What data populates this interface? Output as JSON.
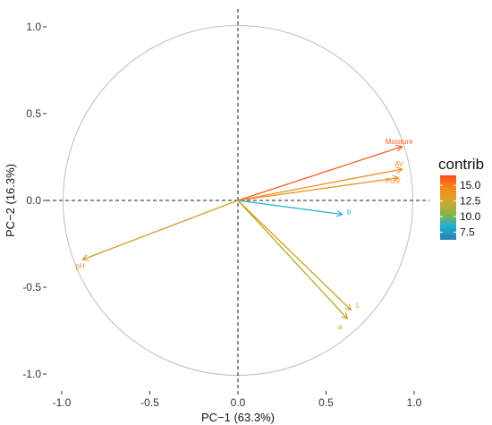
{
  "chart_data": {
    "type": "pca-correlation-circle",
    "xlabel": "PC−1 (63.3%)",
    "ylabel": "PC−2 (16.3%)",
    "xlim": [
      -1.05,
      1.05
    ],
    "ylim": [
      -1.05,
      1.05
    ],
    "x_ticks": [
      -1.0,
      -0.5,
      0.0,
      0.5,
      1.0
    ],
    "x_tick_labels": [
      "-1.0",
      "-0.5",
      "0.0",
      "0.5",
      "1.0"
    ],
    "y_ticks": [
      -1.0,
      -0.5,
      0.0,
      0.5,
      1.0
    ],
    "y_tick_labels": [
      "-1.0",
      "-0.5",
      "0.0",
      "0.5",
      "1.0"
    ],
    "circle_color": "#bdbdbd",
    "reference_lines": "dashed at x=0 and y=0",
    "variables": [
      {
        "name": "Moisture",
        "x": 0.93,
        "y": 0.31,
        "contrib": 15.8,
        "color": "#ff5a1f"
      },
      {
        "name": "AV",
        "x": 0.93,
        "y": 0.18,
        "contrib": 14.5,
        "color": "#f58a1f"
      },
      {
        "name": "POV",
        "x": 0.91,
        "y": 0.13,
        "contrib": 14.0,
        "color": "#ee9324"
      },
      {
        "name": "b",
        "x": 0.59,
        "y": -0.08,
        "contrib": 6.3,
        "color": "#19b2d0"
      },
      {
        "name": "pH",
        "x": -0.88,
        "y": -0.34,
        "contrib": 12.0,
        "color": "#d79a2a"
      },
      {
        "name": "L",
        "x": 0.64,
        "y": -0.63,
        "contrib": 11.2,
        "color": "#c8a424"
      },
      {
        "name": "a",
        "x": 0.62,
        "y": -0.68,
        "contrib": 10.9,
        "color": "#bba820"
      }
    ],
    "legend": {
      "title": "contrib",
      "placement": "right",
      "ticks": [
        15.0,
        12.5,
        10.0,
        7.5
      ],
      "tick_labels": [
        "15.0",
        "12.5",
        "10.0",
        "7.5"
      ],
      "range": [
        6.3,
        16.6
      ],
      "gradient": [
        "#2d7bb6",
        "#19b2d0",
        "#8ab24a",
        "#d5a82a",
        "#f58a1f",
        "#ff4a10"
      ]
    }
  }
}
